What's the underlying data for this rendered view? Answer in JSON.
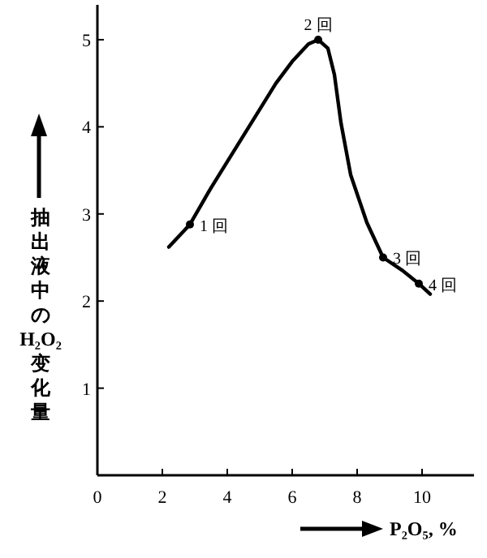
{
  "chart_data": {
    "type": "line",
    "xlabel": "P₂O₅, %",
    "ylabel": "抽出液中のH₂O₂变化量",
    "series": [
      {
        "color": "#000000",
        "marker": "none",
        "x": [
          2.2,
          2.85,
          3.5,
          4,
          4.5,
          5,
          5.5,
          6,
          6.5,
          6.8,
          7.1,
          7.3,
          7.5,
          7.8,
          8.3,
          8.8,
          9.4,
          9.9,
          10.25
        ],
        "values": [
          2.62,
          2.88,
          3.3,
          3.6,
          3.9,
          4.2,
          4.5,
          4.75,
          4.95,
          5.0,
          4.9,
          4.6,
          4.05,
          3.45,
          2.9,
          2.5,
          2.35,
          2.2,
          2.08
        ]
      },
      {
        "type": "scatter",
        "color": "#000000",
        "marker": "circle",
        "x": [
          2.85,
          6.8,
          8.8,
          9.9
        ],
        "values": [
          2.88,
          5.0,
          2.5,
          2.2
        ]
      }
    ],
    "annotations": [
      {
        "text": "1 回",
        "x": 2.85,
        "y": 2.88
      },
      {
        "text": "2 回",
        "x": 6.8,
        "y": 5.0
      },
      {
        "text": "3 回",
        "x": 8.8,
        "y": 2.5
      },
      {
        "text": "4 回",
        "x": 9.9,
        "y": 2.2
      }
    ],
    "xlim": [
      0,
      11.6
    ],
    "ylim": [
      0,
      5.4
    ],
    "xticks": [
      0,
      2,
      4,
      6,
      8,
      10
    ],
    "yticks": [
      1,
      2,
      3,
      4,
      5
    ]
  }
}
